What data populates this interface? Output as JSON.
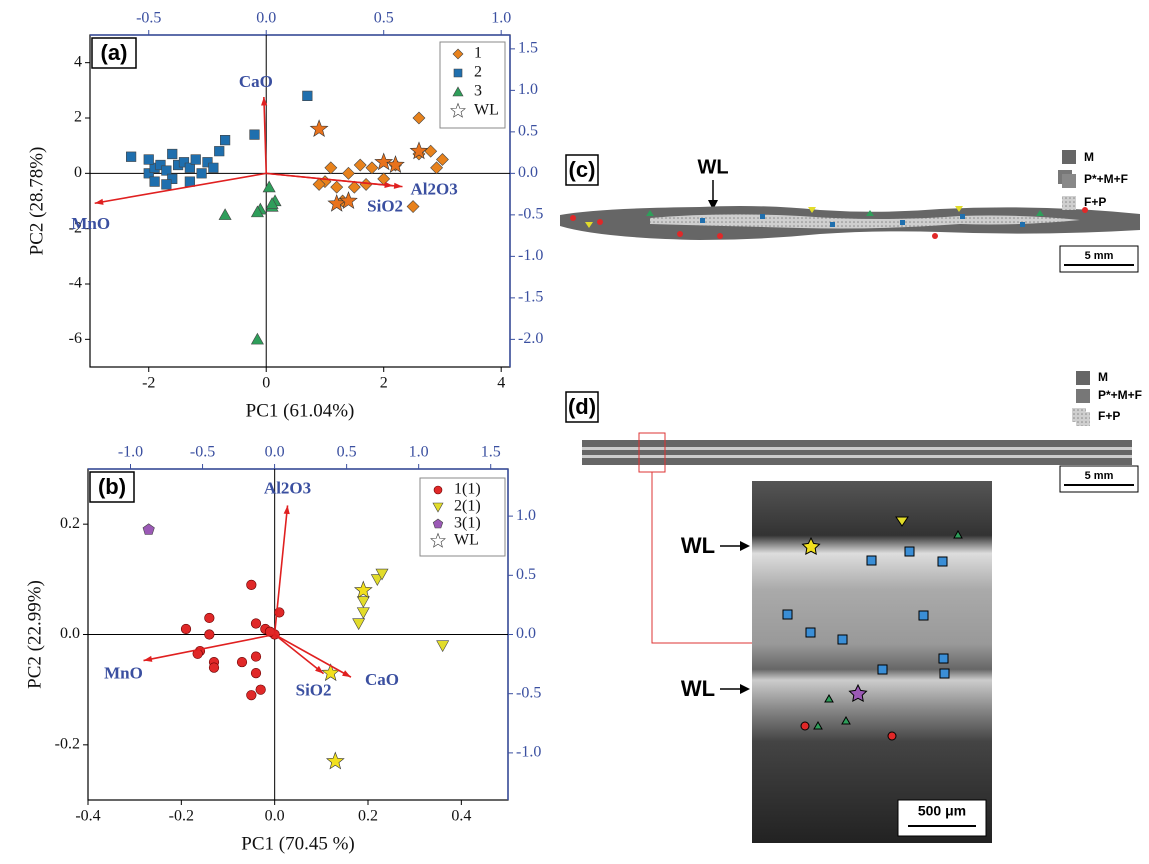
{
  "chart_data": [
    {
      "type": "scatter",
      "panel_label": "(a)",
      "x_label": "PC1 (61.04%)",
      "y_label": "PC2 (28.78%)",
      "xlim": [
        -3,
        4.15
      ],
      "xticks": [
        -2,
        0,
        2,
        4
      ],
      "ylim": [
        -7,
        5
      ],
      "yticks": [
        -6,
        -4,
        -2,
        0,
        2,
        4
      ],
      "x2lim": [
        -0.75,
        1.0375
      ],
      "x2ticks": [
        -0.5,
        {
          "value": 0,
          "label": "0.0"
        },
        0.5,
        {
          "value": 1,
          "label": "1.0"
        }
      ],
      "y2lim": [
        -2.333,
        1.667
      ],
      "y2ticks": [
        1.5,
        {
          "value": 1,
          "label": "1.0"
        },
        0.5,
        {
          "value": 0,
          "label": "0.0"
        },
        -0.5,
        {
          "value": -1,
          "label": "-1.0"
        },
        -1.5,
        {
          "value": -2,
          "label": "-2.0"
        }
      ],
      "series": [
        {
          "name": "1",
          "color": "#e8821c",
          "marker": "diamond",
          "x": [
            1.6,
            1.8,
            1.4,
            1.0,
            1.2,
            1.5,
            1.7,
            2.0,
            1.3,
            2.2,
            2.6,
            2.8,
            3.0,
            2.9,
            2.5,
            2.6,
            1.1,
            0.9
          ],
          "values": [
            0.3,
            0.2,
            0,
            -0.3,
            -0.5,
            -0.5,
            -0.4,
            -0.2,
            -1.0,
            0.3,
            0.7,
            0.8,
            0.5,
            0.2,
            -1.2,
            2.0,
            0.2,
            -0.4
          ]
        },
        {
          "name": "2",
          "color": "#1f6fae",
          "marker": "square",
          "x": [
            -2.0,
            -1.9,
            -1.8,
            -1.7,
            -1.6,
            -1.5,
            -1.4,
            -1.3,
            -1.2,
            -1.0,
            -0.9,
            -1.1,
            -1.7,
            -1.9,
            -2.3,
            -1.6,
            -0.8,
            -0.7,
            -0.2,
            0.7,
            -2.0,
            -1.3
          ],
          "values": [
            0,
            0.2,
            0.3,
            0.1,
            -0.2,
            0.3,
            0.4,
            0.2,
            0.5,
            0.4,
            0.2,
            0,
            -0.4,
            -0.3,
            0.6,
            0.7,
            0.8,
            1.2,
            1.4,
            2.8,
            0.5,
            -0.3
          ]
        },
        {
          "name": "3",
          "color": "#2e9e5a",
          "marker": "triangle",
          "x": [
            -0.1,
            -0.15,
            0.1,
            0.15,
            0.05,
            -0.7,
            -0.15,
            0.1
          ],
          "values": [
            -1.3,
            -1.4,
            -1.2,
            -1.0,
            -0.5,
            -1.5,
            -6.0,
            -1.1
          ]
        },
        {
          "name": "WL",
          "color": "#e8721c",
          "marker": "star",
          "x": [
            0.9,
            1.2,
            1.4,
            2.0,
            2.6,
            2.2
          ],
          "values": [
            1.6,
            -1.1,
            -1.0,
            0.4,
            0.8,
            0.3
          ]
        }
      ],
      "loadings": {
        "color": "#e02020",
        "names": [
          "CaO",
          "MnO",
          "SiO2",
          "Al2O3"
        ],
        "x": [
          -0.01,
          -0.73,
          0.54,
          0.58
        ],
        "values": [
          0.92,
          -0.36,
          -0.15,
          -0.16
        ]
      }
    },
    {
      "type": "scatter",
      "panel_label": "(b)",
      "x_label": "PC1 (70.45 %)",
      "y_label": "PC2 (22.99%)",
      "xlim": [
        -0.4,
        0.5
      ],
      "xticks": [
        -0.4,
        -0.2,
        {
          "value": 0,
          "label": "0.0"
        },
        0.2,
        0.4
      ],
      "ylim": [
        -0.3,
        0.3
      ],
      "yticks": [
        0.2,
        {
          "value": 0,
          "label": "0.0"
        },
        -0.2
      ],
      "x2lim": [
        -1.295,
        1.62
      ],
      "x2ticks": [
        {
          "value": -1,
          "label": "-1.0"
        },
        -0.5,
        {
          "value": 0,
          "label": "0.0"
        },
        0.5,
        {
          "value": 1,
          "label": "1.0"
        },
        1.5
      ],
      "y2lim": [
        -1.398,
        1.398
      ],
      "y2ticks": [
        {
          "value": 1,
          "label": "1.0"
        },
        0.5,
        {
          "value": 0,
          "label": "0.0"
        },
        -0.5,
        {
          "value": -1,
          "label": "-1.0"
        }
      ],
      "series": [
        {
          "name": "1(1)",
          "color": "#e02828",
          "marker": "circle",
          "x": [
            -0.14,
            -0.14,
            -0.16,
            -0.165,
            -0.13,
            -0.13,
            -0.07,
            -0.04,
            -0.04,
            -0.03,
            -0.05,
            -0.04,
            -0.02,
            0.0,
            -0.01,
            0.01,
            -0.05,
            -0.19
          ],
          "values": [
            0.03,
            0.0,
            -0.03,
            -0.035,
            -0.05,
            -0.06,
            -0.05,
            -0.04,
            -0.07,
            -0.1,
            -0.11,
            0.02,
            0.01,
            0.0,
            0.005,
            0.04,
            0.09,
            0.01
          ]
        },
        {
          "name": "2(1)",
          "color": "#e2dc2a",
          "marker": "down",
          "x": [
            0.18,
            0.19,
            0.19,
            0.22,
            0.23,
            0.36
          ],
          "values": [
            0.02,
            0.04,
            0.06,
            0.1,
            0.11,
            -0.02
          ]
        },
        {
          "name": "3(1)",
          "color": "#9b59b6",
          "marker": "pentagon",
          "x": [
            -0.27
          ],
          "values": [
            0.19
          ]
        },
        {
          "name": "WL",
          "color": "#f2e01e",
          "marker": "star",
          "x": [
            0.19,
            0.12,
            0.13
          ],
          "values": [
            0.08,
            -0.07,
            -0.23
          ]
        }
      ],
      "loadings": {
        "color": "#e02020",
        "names": [
          "Al2O3",
          "MnO",
          "SiO2",
          "CaO"
        ],
        "x": [
          0.09,
          -0.91,
          0.34,
          0.53
        ],
        "values": [
          1.09,
          -0.22,
          -0.33,
          -0.36
        ]
      }
    }
  ],
  "panels": {
    "c": {
      "label": "(c)",
      "wl": "WL",
      "legend": [
        "M",
        "P*+M+F",
        "F+P"
      ],
      "scale": "5 mm"
    },
    "d": {
      "label": "(d)",
      "legend": [
        "M",
        "P*+M+F",
        "F+P"
      ],
      "scale": "5 mm",
      "wl": [
        "WL",
        "WL"
      ],
      "micro_scale": "500 μm"
    }
  }
}
